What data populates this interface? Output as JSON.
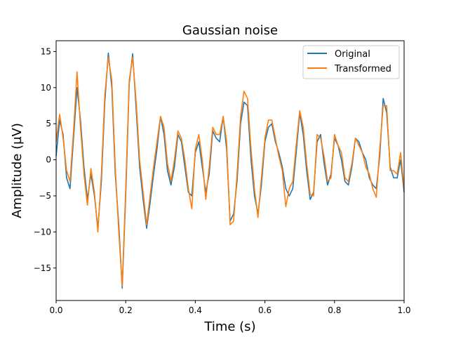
{
  "chart_data": {
    "type": "line",
    "title": "Gaussian noise",
    "xlabel": "Time (s)",
    "ylabel": "Amplitude (µV)",
    "xlim": [
      0.0,
      1.0
    ],
    "ylim": [
      -19.5,
      16.5
    ],
    "xticks": [
      "0.0",
      "0.2",
      "0.4",
      "0.6",
      "0.8",
      "1.0"
    ],
    "yticks": [
      "15",
      "10",
      "5",
      "0",
      "−5",
      "−10",
      "−15"
    ],
    "legend_position": "top-right",
    "grid": false,
    "series": [
      {
        "name": "Original",
        "color": "#1f77b4",
        "x": [
          0.0,
          0.01,
          0.02,
          0.03,
          0.04,
          0.05,
          0.06,
          0.07,
          0.08,
          0.09,
          0.1,
          0.11,
          0.12,
          0.13,
          0.14,
          0.15,
          0.16,
          0.17,
          0.18,
          0.19,
          0.2,
          0.21,
          0.22,
          0.23,
          0.24,
          0.25,
          0.26,
          0.27,
          0.28,
          0.29,
          0.3,
          0.31,
          0.32,
          0.33,
          0.34,
          0.35,
          0.36,
          0.37,
          0.38,
          0.39,
          0.4,
          0.41,
          0.42,
          0.43,
          0.44,
          0.45,
          0.46,
          0.47,
          0.48,
          0.49,
          0.5,
          0.51,
          0.52,
          0.53,
          0.54,
          0.55,
          0.56,
          0.57,
          0.58,
          0.59,
          0.6,
          0.61,
          0.62,
          0.63,
          0.64,
          0.65,
          0.66,
          0.67,
          0.68,
          0.69,
          0.7,
          0.71,
          0.72,
          0.73,
          0.74,
          0.75,
          0.76,
          0.77,
          0.78,
          0.79,
          0.8,
          0.81,
          0.82,
          0.83,
          0.84,
          0.85,
          0.86,
          0.87,
          0.88,
          0.89,
          0.9,
          0.91,
          0.92,
          0.93,
          0.94,
          0.95,
          0.96,
          0.97,
          0.98,
          0.99,
          1.0
        ],
        "y": [
          0.5,
          5.5,
          3.5,
          -2.5,
          -4.0,
          3.0,
          10.0,
          5.5,
          -1.0,
          -5.5,
          -2.0,
          -5.0,
          -9.5,
          -3.0,
          8.0,
          14.8,
          10.0,
          -2.0,
          -9.0,
          -17.8,
          -5.0,
          10.5,
          14.7,
          7.0,
          -1.0,
          -5.5,
          -9.5,
          -6.0,
          -2.0,
          1.5,
          6.0,
          3.5,
          -1.5,
          -3.5,
          -1.0,
          3.5,
          2.5,
          -1.0,
          -4.5,
          -5.0,
          1.0,
          2.5,
          -1.0,
          -4.5,
          -2.0,
          4.0,
          3.0,
          2.5,
          6.0,
          1.5,
          -8.5,
          -7.5,
          -3.0,
          5.0,
          8.0,
          7.5,
          0.0,
          -5.0,
          -7.5,
          -3.5,
          2.5,
          4.5,
          5.0,
          2.5,
          1.0,
          -1.0,
          -4.0,
          -5.0,
          -4.0,
          1.0,
          6.5,
          3.5,
          -1.5,
          -5.5,
          -4.5,
          2.5,
          3.5,
          -0.5,
          -3.5,
          -2.0,
          3.0,
          2.0,
          0.0,
          -3.0,
          -3.5,
          -1.0,
          3.0,
          2.5,
          1.0,
          0.0,
          -2.5,
          -3.5,
          -4.0,
          0.5,
          8.5,
          6.5,
          -1.0,
          -2.5,
          -2.5,
          0.0,
          -4.5
        ]
      },
      {
        "name": "Transformed",
        "color": "#ff7f0e",
        "x": [
          0.0,
          0.01,
          0.02,
          0.03,
          0.04,
          0.05,
          0.06,
          0.07,
          0.08,
          0.09,
          0.1,
          0.11,
          0.12,
          0.13,
          0.14,
          0.15,
          0.16,
          0.17,
          0.18,
          0.19,
          0.2,
          0.21,
          0.22,
          0.23,
          0.24,
          0.25,
          0.26,
          0.27,
          0.28,
          0.29,
          0.3,
          0.31,
          0.32,
          0.33,
          0.34,
          0.35,
          0.36,
          0.37,
          0.38,
          0.39,
          0.4,
          0.41,
          0.42,
          0.43,
          0.44,
          0.45,
          0.46,
          0.47,
          0.48,
          0.49,
          0.5,
          0.51,
          0.52,
          0.53,
          0.54,
          0.55,
          0.56,
          0.57,
          0.58,
          0.59,
          0.6,
          0.61,
          0.62,
          0.63,
          0.64,
          0.65,
          0.66,
          0.67,
          0.68,
          0.69,
          0.7,
          0.71,
          0.72,
          0.73,
          0.74,
          0.75,
          0.76,
          0.77,
          0.78,
          0.79,
          0.8,
          0.81,
          0.82,
          0.83,
          0.84,
          0.85,
          0.86,
          0.87,
          0.88,
          0.89,
          0.9,
          0.91,
          0.92,
          0.93,
          0.94,
          0.95,
          0.96,
          0.97,
          0.98,
          0.99,
          1.0
        ],
        "y": [
          2.5,
          6.3,
          3.0,
          -1.5,
          -3.0,
          4.0,
          12.2,
          4.5,
          -2.0,
          -6.3,
          -1.2,
          -4.5,
          -10.0,
          -2.0,
          9.0,
          14.2,
          11.0,
          -1.0,
          -10.0,
          -17.5,
          -4.0,
          11.0,
          14.2,
          8.0,
          0.0,
          -4.5,
          -9.0,
          -5.0,
          -1.0,
          2.5,
          6.0,
          4.5,
          -0.5,
          -3.0,
          0.0,
          4.0,
          3.0,
          0.0,
          -4.0,
          -6.8,
          1.5,
          3.5,
          0.0,
          -5.5,
          -1.0,
          4.5,
          3.5,
          3.5,
          6.0,
          2.5,
          -9.0,
          -8.5,
          -2.0,
          6.0,
          9.5,
          8.5,
          1.5,
          -4.0,
          -8.0,
          -2.5,
          3.0,
          5.5,
          5.5,
          3.0,
          0.5,
          -1.5,
          -6.5,
          -4.0,
          -3.0,
          2.0,
          6.8,
          4.5,
          -0.5,
          -4.8,
          -5.0,
          3.5,
          3.0,
          0.5,
          -3.0,
          -2.5,
          3.5,
          2.0,
          1.0,
          -2.5,
          -3.0,
          -0.5,
          3.0,
          2.0,
          1.0,
          -1.0,
          -2.0,
          -4.0,
          -5.2,
          1.5,
          7.5,
          7.5,
          -1.5,
          -1.5,
          -2.0,
          1.0,
          -4.0
        ]
      }
    ]
  }
}
